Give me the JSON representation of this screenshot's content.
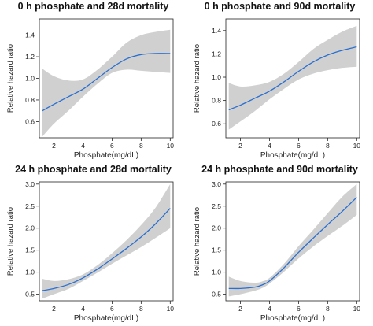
{
  "chart_data": [
    {
      "type": "line",
      "title": "0 h phosphate and 28d mortality",
      "xlabel": "Phosphate(mg/dL)",
      "ylabel": "Relative hazard ratio",
      "xlim": [
        1,
        10.2
      ],
      "ylim": [
        0.45,
        1.55
      ],
      "xticks": [
        2,
        4,
        6,
        8,
        10
      ],
      "yticks": [
        0.6,
        0.8,
        1.0,
        1.2,
        1.4
      ],
      "ytick_labels": [
        "0.6",
        "0.8",
        "1.0",
        "1.2",
        "1.4"
      ],
      "grid": false,
      "series": [
        {
          "x": [
            1.2,
            2,
            3,
            4,
            5,
            6,
            7,
            8,
            9,
            10
          ],
          "y": [
            0.7,
            0.76,
            0.83,
            0.9,
            1.0,
            1.1,
            1.18,
            1.22,
            1.23,
            1.23
          ],
          "lower": [
            0.46,
            0.58,
            0.7,
            0.83,
            0.95,
            1.05,
            1.08,
            1.07,
            1.06,
            1.05
          ],
          "upper": [
            1.09,
            1.02,
            0.98,
            0.99,
            1.08,
            1.2,
            1.33,
            1.4,
            1.43,
            1.45
          ]
        }
      ]
    },
    {
      "type": "line",
      "title": "0 h phosphate and 90d mortality",
      "xlabel": "Phosphate(mg/dL)",
      "ylabel": "Relative hazard ratio",
      "xlim": [
        1,
        10.2
      ],
      "ylim": [
        0.48,
        1.5
      ],
      "xticks": [
        2,
        4,
        6,
        8,
        10
      ],
      "yticks": [
        0.6,
        0.8,
        1.0,
        1.2,
        1.4
      ],
      "ytick_labels": [
        "0.6",
        "0.8",
        "1.0",
        "1.2",
        "1.4"
      ],
      "grid": false,
      "series": [
        {
          "x": [
            1.2,
            2,
            3,
            4,
            5,
            6,
            7,
            8,
            9,
            10
          ],
          "y": [
            0.72,
            0.76,
            0.82,
            0.88,
            0.96,
            1.05,
            1.13,
            1.19,
            1.23,
            1.26
          ],
          "lower": [
            0.55,
            0.62,
            0.71,
            0.81,
            0.9,
            0.98,
            1.03,
            1.06,
            1.08,
            1.09
          ],
          "upper": [
            0.95,
            0.92,
            0.93,
            0.96,
            1.03,
            1.13,
            1.24,
            1.32,
            1.39,
            1.44
          ]
        }
      ]
    },
    {
      "type": "line",
      "title": "24 h phosphate and 28d mortality",
      "xlabel": "Phosphate(mg/dL)",
      "ylabel": "Relative hazard ratio",
      "xlim": [
        1,
        10.2
      ],
      "ylim": [
        0.35,
        3.05
      ],
      "xticks": [
        2,
        4,
        6,
        8,
        10
      ],
      "yticks": [
        0.5,
        1.0,
        1.5,
        2.0,
        2.5,
        3.0
      ],
      "ytick_labels": [
        "0.5",
        "1.0",
        "1.5",
        "2.0",
        "2.5",
        "3.0"
      ],
      "grid": false,
      "series": [
        {
          "x": [
            1.2,
            2,
            3,
            4,
            5,
            6,
            7,
            8,
            9,
            10
          ],
          "y": [
            0.58,
            0.63,
            0.72,
            0.87,
            1.07,
            1.3,
            1.54,
            1.8,
            2.1,
            2.45
          ],
          "lower": [
            0.4,
            0.5,
            0.62,
            0.8,
            0.99,
            1.19,
            1.38,
            1.57,
            1.78,
            2.0
          ],
          "upper": [
            0.85,
            0.8,
            0.84,
            0.95,
            1.16,
            1.43,
            1.73,
            2.07,
            2.47,
            3.0
          ]
        }
      ]
    },
    {
      "type": "line",
      "title": "24 h phosphate and 90d mortality",
      "xlabel": "Phosphate(mg/dL)",
      "ylabel": "Relative hazard ratio",
      "xlim": [
        1,
        10.2
      ],
      "ylim": [
        0.35,
        3.05
      ],
      "xticks": [
        2,
        4,
        6,
        8,
        10
      ],
      "yticks": [
        0.5,
        1.0,
        1.5,
        2.0,
        2.5,
        3.0
      ],
      "ytick_labels": [
        "0.5",
        "1.0",
        "1.5",
        "2.0",
        "2.5",
        "3.0"
      ],
      "grid": false,
      "series": [
        {
          "x": [
            1.2,
            2,
            3,
            3.5,
            4,
            5,
            6,
            7,
            8,
            9,
            10
          ],
          "y": [
            0.63,
            0.63,
            0.66,
            0.71,
            0.8,
            1.1,
            1.45,
            1.77,
            2.08,
            2.38,
            2.7
          ],
          "lower": [
            0.45,
            0.5,
            0.58,
            0.64,
            0.74,
            1.01,
            1.31,
            1.58,
            1.82,
            2.05,
            2.3
          ],
          "upper": [
            0.9,
            0.8,
            0.76,
            0.79,
            0.87,
            1.19,
            1.59,
            1.96,
            2.34,
            2.71,
            3.0
          ]
        }
      ]
    }
  ],
  "colors": {
    "line": "#2a6fd0",
    "band": "#d0d0d0",
    "axis": "#222222"
  }
}
